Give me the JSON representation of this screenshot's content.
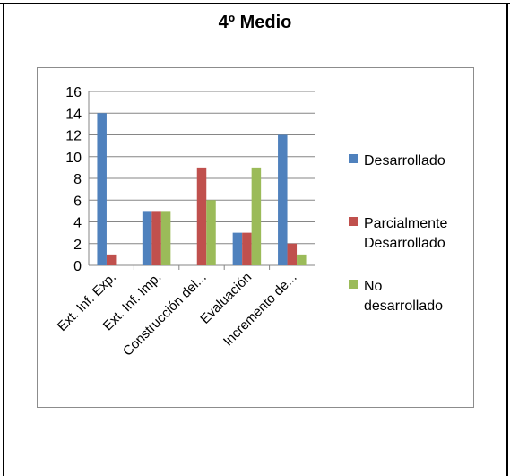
{
  "page": {
    "title": "4º Medio"
  },
  "chart_data": {
    "type": "bar",
    "categories": [
      "Ext. Inf. Exp.",
      "Ext. Inf. Imp.",
      "Construcción del...",
      "Evaluación",
      "Incremento de..."
    ],
    "series": [
      {
        "name": "Desarrollado",
        "color": "#4f81bd",
        "values": [
          14,
          5,
          0,
          3,
          12
        ]
      },
      {
        "name": "Parcialmente Desarrollado",
        "color": "#c0504d",
        "values": [
          1,
          5,
          9,
          3,
          2
        ]
      },
      {
        "name": "No desarrollado",
        "color": "#9bbb59",
        "values": [
          0,
          5,
          6,
          9,
          1
        ]
      }
    ],
    "legend_lines": [
      [
        "Desarrollado"
      ],
      [
        "Parcialmente",
        "Desarrollado"
      ],
      [
        "No",
        "desarrollado"
      ]
    ],
    "yticks": [
      "0",
      "2",
      "4",
      "6",
      "8",
      "10",
      "12",
      "14",
      "16"
    ],
    "ylim": [
      0,
      16
    ],
    "title": "",
    "xlabel": "",
    "ylabel": "",
    "grid": true,
    "legend_position": "right"
  }
}
